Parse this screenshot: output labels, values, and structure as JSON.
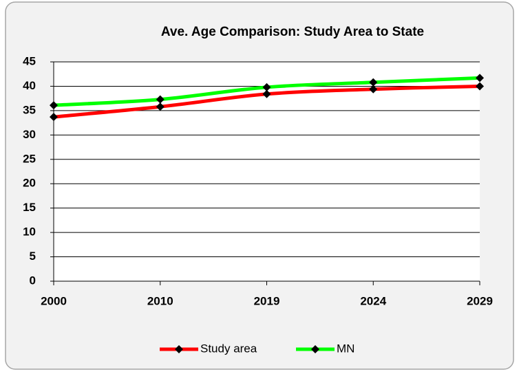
{
  "chart_data": {
    "type": "line",
    "title": "Ave. Age Comparison: Study Area to State",
    "categories": [
      "2000",
      "2010",
      "2019",
      "2024",
      "2029"
    ],
    "series": [
      {
        "name": "Study area",
        "color": "#ff0000",
        "values": [
          33.7,
          35.8,
          38.4,
          39.4,
          40.0
        ]
      },
      {
        "name": "MN",
        "color": "#00ff00",
        "values": [
          36.1,
          37.3,
          39.8,
          40.8,
          41.7
        ]
      }
    ],
    "ylim": [
      0,
      45
    ],
    "yticks": [
      0,
      5,
      10,
      15,
      20,
      25,
      30,
      35,
      40,
      45
    ],
    "grid": true,
    "legend": "bottom"
  }
}
